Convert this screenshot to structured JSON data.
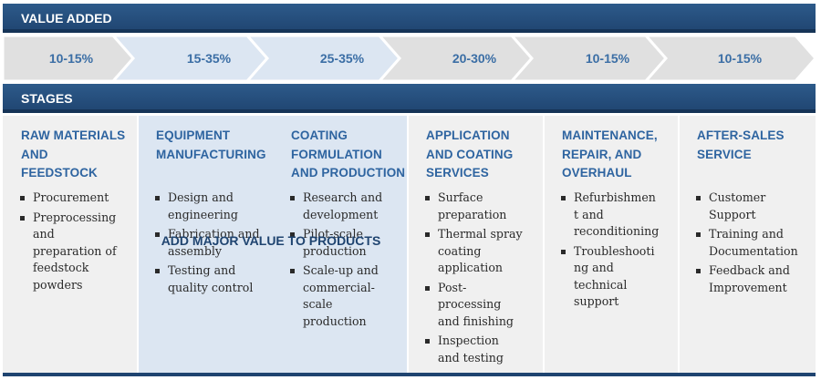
{
  "value_added": {
    "title": "VALUE ADDED",
    "percentages": [
      "10-15%",
      "15-35%",
      "25-35%",
      "20-30%",
      "10-15%",
      "10-15%"
    ]
  },
  "stages": {
    "title": "STAGES",
    "columns": [
      {
        "title_lines": [
          "RAW MATERIALS",
          "AND",
          "FEEDSTOCK"
        ],
        "items": [
          [
            "Procurement"
          ],
          [
            "Preprocessing",
            "and",
            "preparation of",
            "feedstock",
            "powders"
          ]
        ]
      },
      {
        "title_lines": [
          "EQUIPMENT",
          "MANUFACTURING"
        ],
        "items": [
          [
            "Design and",
            "engineering"
          ],
          [
            "Fabrication and",
            "assembly"
          ],
          [
            "Testing and",
            "quality control"
          ]
        ]
      },
      {
        "title_lines": [
          "COATING",
          "FORMULATION",
          "AND PRODUCTION"
        ],
        "items": [
          [
            "Research and",
            "development"
          ],
          [
            "Pilot-scale",
            "production"
          ],
          [
            "Scale-up and",
            "commercial-",
            "scale",
            "production"
          ]
        ]
      },
      {
        "title_lines": [
          "APPLICATION",
          "AND COATING",
          "SERVICES"
        ],
        "items": [
          [
            "Surface",
            "preparation"
          ],
          [
            "Thermal spray",
            "coating",
            "application"
          ],
          [
            "Post-",
            "processing",
            "and finishing"
          ],
          [
            "Inspection",
            "and testing"
          ]
        ]
      },
      {
        "title_lines": [
          "MAINTENANCE,",
          "REPAIR, AND",
          "OVERHAUL"
        ],
        "items": [
          [
            "Refurbishmen",
            "t and",
            "reconditioning"
          ],
          [
            "Troubleshooti",
            "ng and",
            "technical",
            "support"
          ]
        ]
      },
      {
        "title_lines": [
          "AFTER-SALES",
          "SERVICE"
        ],
        "items": [
          [
            "Customer",
            "Support"
          ],
          [
            "Training and",
            "Documentation"
          ],
          [
            "Feedback and",
            "Improvement"
          ]
        ]
      }
    ],
    "highlight_label": "ADD MAJOR VALUE TO PRODUCTS"
  },
  "colors": {
    "header_band": "#1f4470",
    "title_text": "#2e64a0",
    "highlight_bg": "#dce6f2",
    "arrow_light": "#dce6f2",
    "arrow_grey": "#e0e0e0"
  }
}
